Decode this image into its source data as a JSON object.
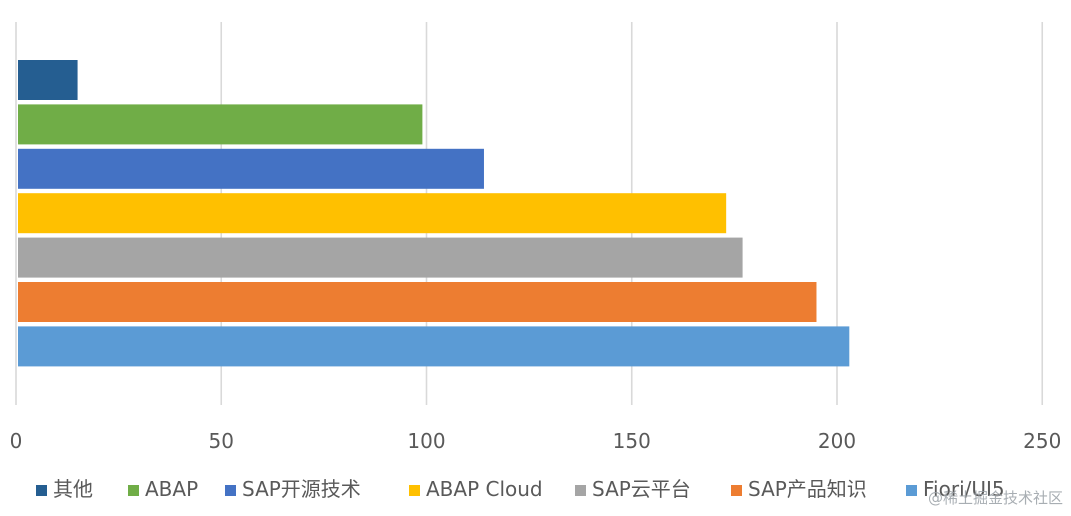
{
  "chart_data": {
    "type": "bar",
    "orientation": "horizontal",
    "title": "",
    "xlabel": "",
    "ylabel": "",
    "xlim": [
      0,
      250
    ],
    "ticks": [
      "0",
      "50",
      "100",
      "150",
      "200",
      "250"
    ],
    "tick_values": [
      0,
      50,
      100,
      150,
      200,
      250
    ],
    "grid": true,
    "legend_position": "bottom",
    "series": [
      {
        "name": "其他",
        "value": 15,
        "color": "#255E91"
      },
      {
        "name": "ABAP",
        "value": 99,
        "color": "#70AD47"
      },
      {
        "name": "SAP开源技术",
        "value": 114,
        "color": "#4472C4"
      },
      {
        "name": "ABAP Cloud",
        "value": 173,
        "color": "#FFC000"
      },
      {
        "name": "SAP云平台",
        "value": 177,
        "color": "#A5A5A5"
      },
      {
        "name": "SAP产品知识",
        "value": 195,
        "color": "#ED7D31"
      },
      {
        "name": "Fiori/UI5",
        "value": 203,
        "color": "#5B9BD5"
      }
    ]
  },
  "watermark": "@稀土掘金技术社区"
}
